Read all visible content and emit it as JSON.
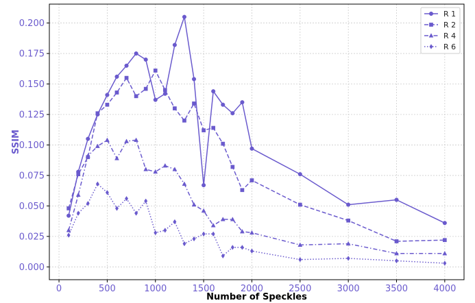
{
  "colors": {
    "series": "#6a5acd",
    "axis_text": "#6a5acd",
    "grid": "#cccccc",
    "frame": "#000000"
  },
  "chart_data": {
    "type": "line",
    "title": "",
    "xlabel": "Number of Speckles",
    "ylabel": "SSIM",
    "xlim": [
      -100,
      4200
    ],
    "ylim": [
      -0.0105,
      0.2155
    ],
    "xticks": [
      0,
      500,
      1000,
      1500,
      2000,
      2500,
      3000,
      3500,
      4000
    ],
    "xtick_labels": [
      "0",
      "500",
      "1000",
      "1500",
      "2000",
      "2500",
      "3000",
      "3500",
      "4000"
    ],
    "yticks": [
      0.0,
      0.025,
      0.05,
      0.075,
      0.1,
      0.125,
      0.15,
      0.175,
      0.2
    ],
    "ytick_labels": [
      "0.000",
      "0.025",
      "0.050",
      "0.075",
      "0.100",
      "0.125",
      "0.150",
      "0.175",
      "0.200"
    ],
    "grid": true,
    "legend_position": "top-right",
    "x": [
      100,
      200,
      300,
      400,
      500,
      600,
      700,
      800,
      900,
      1000,
      1100,
      1200,
      1300,
      1400,
      1500,
      1600,
      1700,
      1800,
      1900,
      2000,
      2500,
      3000,
      3500,
      4000
    ],
    "series": [
      {
        "name": "R 1",
        "marker": "circle",
        "dash": "solid",
        "values": [
          0.042,
          0.078,
          0.105,
          0.125,
          0.141,
          0.156,
          0.165,
          0.175,
          0.17,
          0.137,
          0.142,
          0.182,
          0.205,
          0.154,
          0.067,
          0.144,
          0.133,
          0.126,
          0.135,
          0.097,
          0.076,
          0.051,
          0.055,
          0.036
        ]
      },
      {
        "name": "R 2",
        "marker": "square",
        "dash": "dashed",
        "values": [
          0.048,
          0.076,
          0.09,
          0.126,
          0.133,
          0.143,
          0.155,
          0.14,
          0.146,
          0.161,
          0.145,
          0.13,
          0.12,
          0.134,
          0.112,
          0.114,
          0.101,
          0.082,
          0.063,
          0.071,
          0.051,
          0.038,
          0.021,
          0.022
        ]
      },
      {
        "name": "R 4",
        "marker": "triangle",
        "dash": "dashdot",
        "values": [
          0.03,
          0.059,
          0.091,
          0.099,
          0.104,
          0.089,
          0.103,
          0.104,
          0.08,
          0.078,
          0.083,
          0.08,
          0.068,
          0.051,
          0.046,
          0.034,
          0.039,
          0.039,
          0.029,
          0.028,
          0.018,
          0.019,
          0.011,
          0.011
        ]
      },
      {
        "name": "R 6",
        "marker": "diamond",
        "dash": "dotted",
        "values": [
          0.026,
          0.044,
          0.052,
          0.068,
          0.061,
          0.048,
          0.056,
          0.044,
          0.054,
          0.028,
          0.03,
          0.037,
          0.019,
          0.023,
          0.027,
          0.027,
          0.009,
          0.016,
          0.016,
          0.013,
          0.006,
          0.007,
          0.005,
          0.003
        ]
      }
    ]
  }
}
